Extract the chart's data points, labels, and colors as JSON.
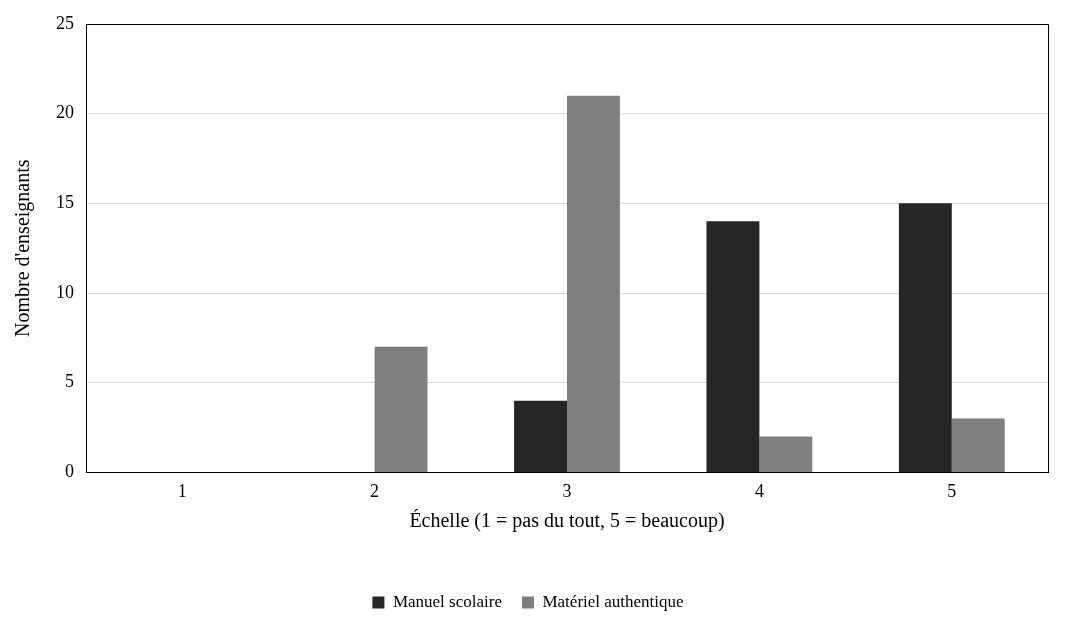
{
  "chart_data": {
    "type": "bar",
    "xlabel": "Échelle (1 = pas du tout, 5 = beaucoup)",
    "ylabel": "Nombre d'enseignants",
    "categories": [
      "1",
      "2",
      "3",
      "4",
      "5"
    ],
    "series": [
      {
        "name": "Manuel scolaire",
        "color": "#262626",
        "values": [
          0,
          0,
          4,
          14,
          15
        ]
      },
      {
        "name": "Matériel authentique",
        "color": "#7f7f7f",
        "values": [
          0,
          7,
          21,
          2,
          3
        ]
      }
    ],
    "ylim": [
      0,
      25
    ],
    "yticks": [
      0,
      5,
      10,
      15,
      20,
      25
    ],
    "grid": "y",
    "legend": "bottom"
  }
}
